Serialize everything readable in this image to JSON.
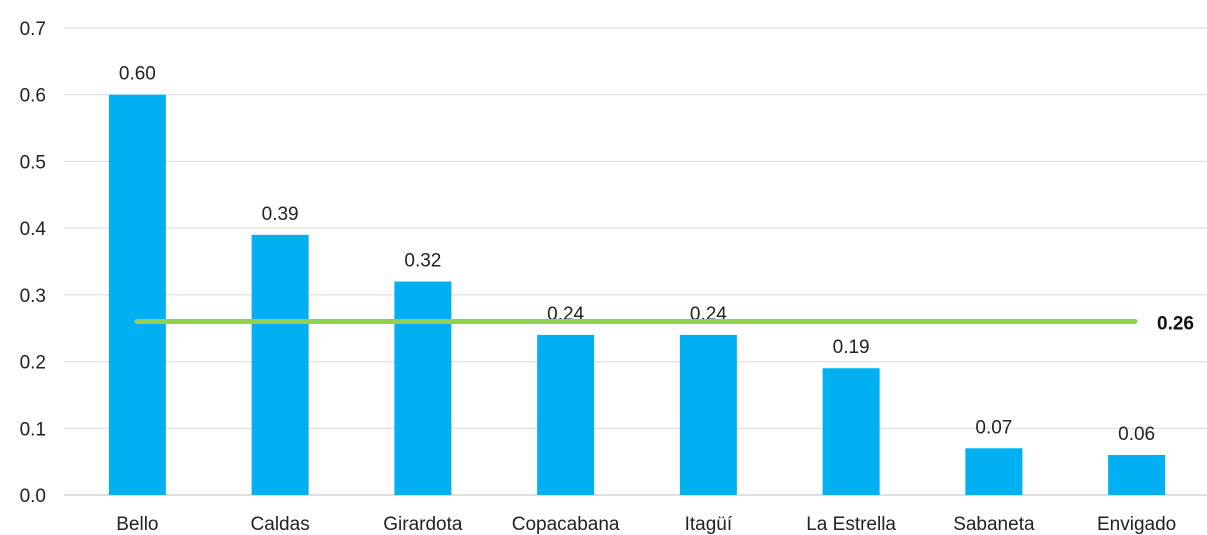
{
  "chart_data": {
    "type": "bar",
    "categories": [
      "Bello",
      "Caldas",
      "Girardota",
      "Copacabana",
      "Itagüí",
      "La Estrella",
      "Sabaneta",
      "Envigado"
    ],
    "values": [
      0.6,
      0.39,
      0.32,
      0.24,
      0.24,
      0.19,
      0.07,
      0.06
    ],
    "value_labels": [
      "0.60",
      "0.39",
      "0.32",
      "0.24",
      "0.24",
      "0.19",
      "0.07",
      "0.06"
    ],
    "yticks": [
      "0.0",
      "0.1",
      "0.2",
      "0.3",
      "0.4",
      "0.5",
      "0.6",
      "0.7"
    ],
    "ylim": [
      0,
      0.7
    ],
    "reference_line": {
      "value": 0.26,
      "label": "0.26"
    },
    "title": "",
    "xlabel": "",
    "ylabel": "",
    "grid": true,
    "legend": "none",
    "colors": {
      "bar": "#00b0f0",
      "reference_line": "#92d050",
      "grid": "#d9d9d9"
    }
  }
}
